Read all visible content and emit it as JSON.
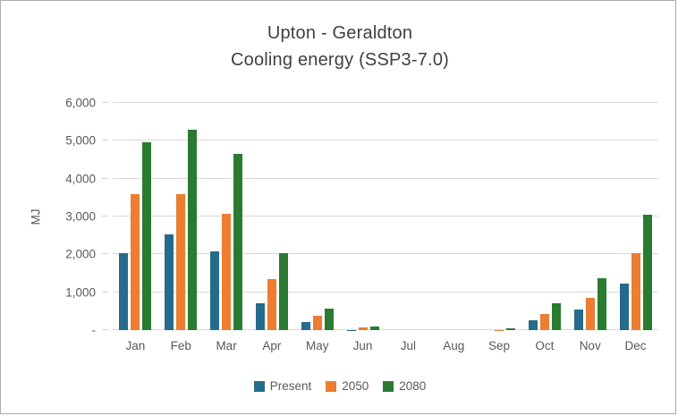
{
  "chart_data": {
    "type": "bar",
    "title": "Upton - Geraldton",
    "subtitle": "Cooling energy (SSP3-7.0)",
    "ylabel": "MJ",
    "categories": [
      "Jan",
      "Feb",
      "Mar",
      "Apr",
      "May",
      "Jun",
      "Jul",
      "Aug",
      "Sep",
      "Oct",
      "Nov",
      "Dec"
    ],
    "series": [
      {
        "name": "Present",
        "color": "#266B8C",
        "values": [
          2040,
          2530,
          2080,
          700,
          220,
          10,
          0,
          0,
          0,
          260,
          550,
          1230
        ]
      },
      {
        "name": "2050",
        "color": "#ED7D31",
        "values": [
          3590,
          3580,
          3070,
          1350,
          370,
          60,
          0,
          0,
          10,
          420,
          840,
          2040
        ]
      },
      {
        "name": "2080",
        "color": "#2A7B31",
        "values": [
          4950,
          5280,
          4650,
          2040,
          570,
          90,
          0,
          0,
          40,
          700,
          1370,
          3050
        ]
      }
    ],
    "ylim": [
      0,
      6000
    ],
    "ytick_interval": 1000,
    "ytick_labels": [
      "-",
      "1,000",
      "2,000",
      "3,000",
      "4,000",
      "5,000",
      "6,000"
    ],
    "legend_position": "bottom",
    "grid": "horizontal-only",
    "units": "MJ"
  },
  "colors": {
    "gridline": "#D9D9D9",
    "axis_text": "#595959",
    "title_text": "#404040",
    "frame_border": "#ACACAC",
    "background": "#FFFFFF"
  }
}
